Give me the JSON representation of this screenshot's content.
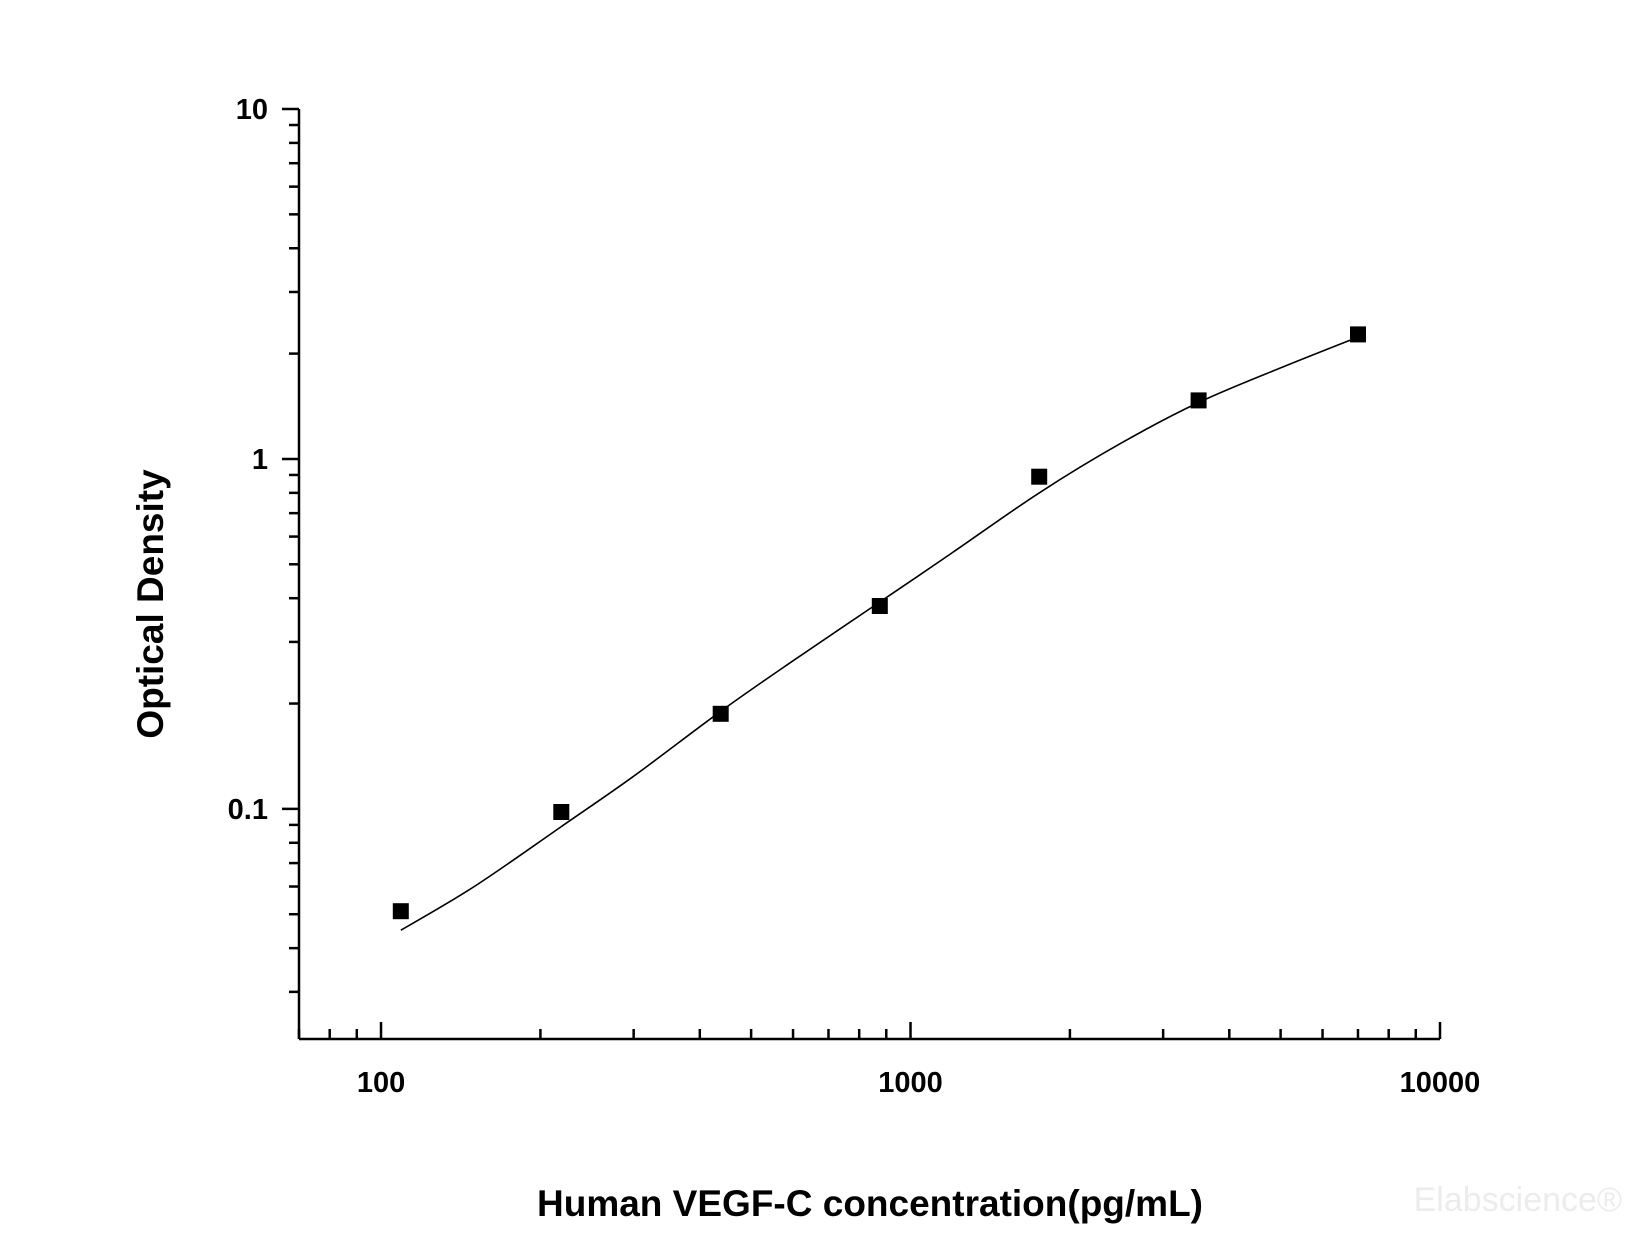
{
  "chart_data": {
    "type": "scatter",
    "title": "",
    "xlabel": "Human VEGF-C concentration(pg/mL)",
    "ylabel": "Optical Density",
    "x_scale": "log",
    "y_scale": "log",
    "xlim": [
      70,
      10000
    ],
    "ylim": [
      0.022,
      10
    ],
    "grid": false,
    "x_ticks": [
      {
        "value": 100,
        "label": "100"
      },
      {
        "value": 1000,
        "label": "1000"
      },
      {
        "value": 10000,
        "label": "10000"
      }
    ],
    "y_ticks": [
      {
        "value": 0.1,
        "label": "0.1"
      },
      {
        "value": 1,
        "label": "1"
      },
      {
        "value": 10,
        "label": "10"
      }
    ],
    "series": [
      {
        "marker": "square",
        "color": "#000000",
        "points": [
          {
            "x": 109,
            "y": 0.051
          },
          {
            "x": 219,
            "y": 0.098
          },
          {
            "x": 438,
            "y": 0.187
          },
          {
            "x": 875,
            "y": 0.38
          },
          {
            "x": 1750,
            "y": 0.89
          },
          {
            "x": 3500,
            "y": 1.47
          },
          {
            "x": 7000,
            "y": 2.27
          }
        ]
      }
    ],
    "fit_curve": {
      "color": "#000000",
      "x_range": [
        109,
        7000
      ],
      "points": [
        {
          "x": 109,
          "y": 0.045
        },
        {
          "x": 150,
          "y": 0.06
        },
        {
          "x": 219,
          "y": 0.089
        },
        {
          "x": 300,
          "y": 0.124
        },
        {
          "x": 438,
          "y": 0.19
        },
        {
          "x": 600,
          "y": 0.265
        },
        {
          "x": 875,
          "y": 0.39
        },
        {
          "x": 1200,
          "y": 0.54
        },
        {
          "x": 1750,
          "y": 0.8
        },
        {
          "x": 2500,
          "y": 1.11
        },
        {
          "x": 3500,
          "y": 1.45
        },
        {
          "x": 5000,
          "y": 1.82
        },
        {
          "x": 7000,
          "y": 2.23
        }
      ]
    },
    "watermark": "Elabscience®"
  }
}
